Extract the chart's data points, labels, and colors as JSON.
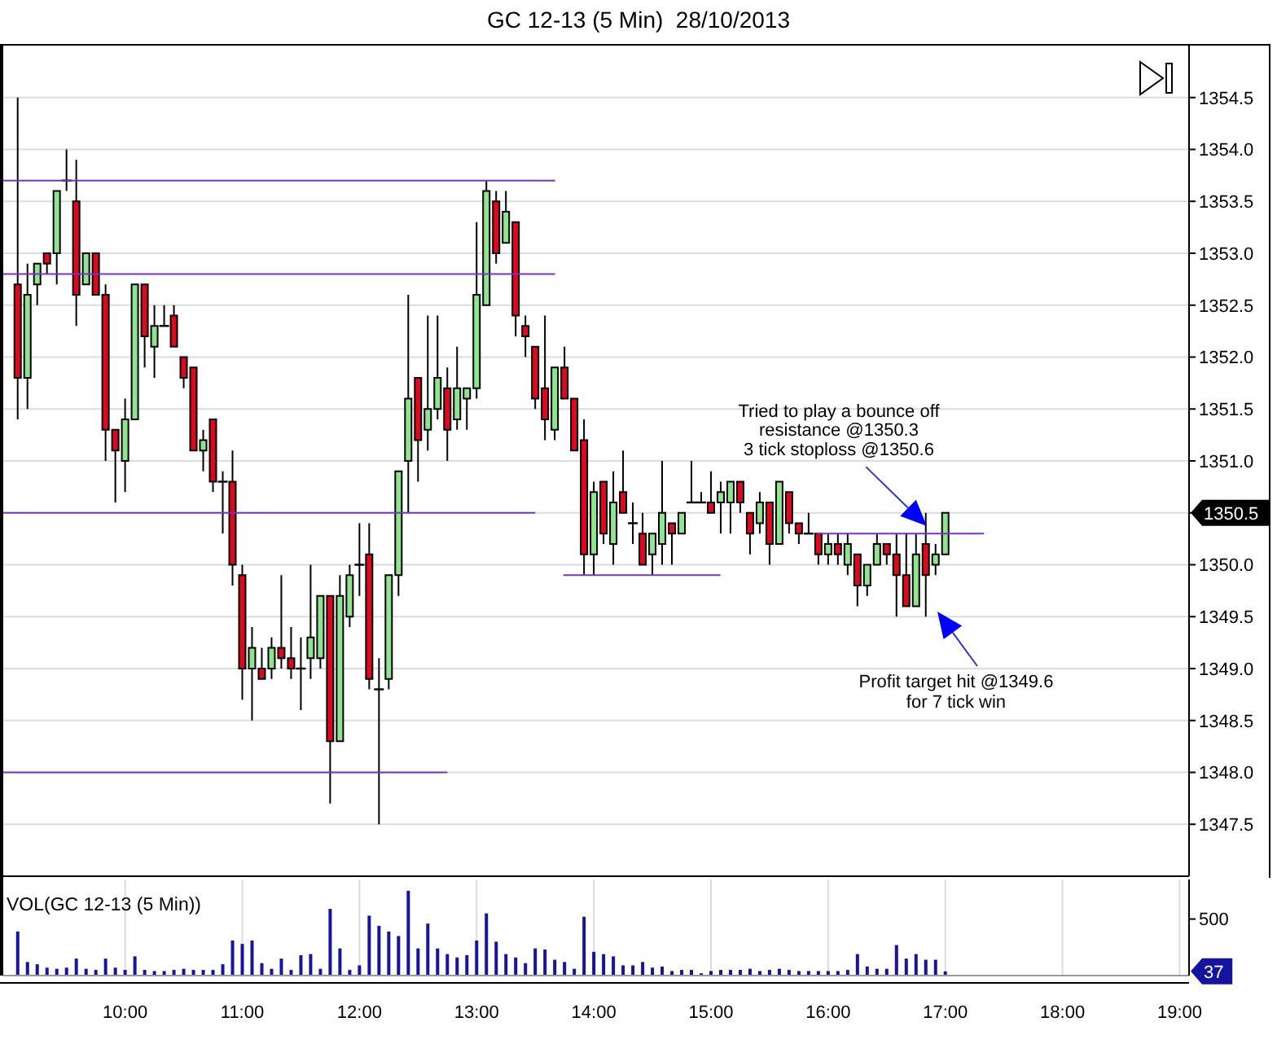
{
  "chart_data": [
    {
      "type": "candlestick",
      "title": "GC 12-13 (5 Min)  28/10/2013",
      "x": [
        9.0833,
        9.1667,
        9.25,
        9.3333,
        9.4167,
        9.5,
        9.5833,
        9.6667,
        9.75,
        9.8333,
        9.9167,
        10,
        10.0833,
        10.1667,
        10.25,
        10.3333,
        10.4167,
        10.5,
        10.5833,
        10.6667,
        10.75,
        10.8333,
        10.9167,
        11,
        11.0833,
        11.1667,
        11.25,
        11.3333,
        11.4167,
        11.5,
        11.5833,
        11.6667,
        11.75,
        11.8333,
        11.9167,
        12,
        12.0833,
        12.1667,
        12.25,
        12.3333,
        12.4167,
        12.5,
        12.5833,
        12.6667,
        12.75,
        12.8333,
        12.9167,
        13,
        13.0833,
        13.1667,
        13.25,
        13.3333,
        13.4167,
        13.5,
        13.5833,
        13.6667,
        13.75,
        13.8333,
        13.9167,
        14,
        14.0833,
        14.1667,
        14.25,
        14.3333,
        14.4167,
        14.5,
        14.5833,
        14.6667,
        14.75,
        14.8333,
        14.9167,
        15,
        15.0833,
        15.1667,
        15.25,
        15.3333,
        15.4167,
        15.5,
        15.5833,
        15.6667,
        15.75,
        15.8333,
        15.9167,
        16,
        16.0833,
        16.1667,
        16.25,
        16.3333,
        16.4167,
        16.5,
        16.5833,
        16.6667,
        16.75,
        16.8333,
        16.9167,
        17
      ],
      "ohlc": [
        [
          1352.7,
          1354.5,
          1351.4,
          1351.8
        ],
        [
          1351.8,
          1352.9,
          1351.5,
          1352.6
        ],
        [
          1352.7,
          1352.9,
          1352.5,
          1352.9
        ],
        [
          1353.0,
          1353.0,
          1352.8,
          1352.9
        ],
        [
          1353.0,
          1353.6,
          1352.7,
          1353.6
        ],
        [
          1353.7,
          1354.0,
          1353.6,
          1353.7
        ],
        [
          1353.5,
          1353.9,
          1352.3,
          1352.6
        ],
        [
          1352.7,
          1353.0,
          1352.7,
          1353.0
        ],
        [
          1353.0,
          1353.0,
          1352.6,
          1352.6
        ],
        [
          1352.6,
          1352.7,
          1351.0,
          1351.3
        ],
        [
          1351.3,
          1351.3,
          1350.6,
          1351.1
        ],
        [
          1351.0,
          1351.6,
          1350.7,
          1351.4
        ],
        [
          1351.4,
          1352.7,
          1351.4,
          1352.7
        ],
        [
          1352.7,
          1352.7,
          1351.9,
          1352.2
        ],
        [
          1352.1,
          1352.5,
          1351.8,
          1352.3
        ],
        [
          1352.3,
          1352.5,
          1352.3,
          1352.3
        ],
        [
          1352.4,
          1352.5,
          1352.1,
          1352.1
        ],
        [
          1352.0,
          1352.0,
          1351.7,
          1351.8
        ],
        [
          1351.9,
          1351.9,
          1351.1,
          1351.1
        ],
        [
          1351.1,
          1351.3,
          1350.9,
          1351.2
        ],
        [
          1351.4,
          1351.4,
          1350.7,
          1350.8
        ],
        [
          1350.8,
          1350.9,
          1350.3,
          1350.8
        ],
        [
          1350.8,
          1351.1,
          1349.8,
          1350.0
        ],
        [
          1349.9,
          1350.0,
          1348.7,
          1349.0
        ],
        [
          1349.0,
          1349.4,
          1348.5,
          1349.2
        ],
        [
          1349.0,
          1349.2,
          1348.9,
          1348.9
        ],
        [
          1349.0,
          1349.3,
          1348.9,
          1349.2
        ],
        [
          1349.2,
          1349.9,
          1349.0,
          1349.1
        ],
        [
          1349.1,
          1349.4,
          1348.9,
          1349.0
        ],
        [
          1349.0,
          1349.3,
          1348.6,
          1349.0
        ],
        [
          1349.1,
          1350.0,
          1348.9,
          1349.3
        ],
        [
          1349.1,
          1349.7,
          1349.0,
          1349.7
        ],
        [
          1349.7,
          1349.7,
          1347.7,
          1348.3
        ],
        [
          1348.3,
          1349.9,
          1348.3,
          1349.7
        ],
        [
          1349.5,
          1350.0,
          1349.4,
          1349.9
        ],
        [
          1350.0,
          1350.4,
          1349.7,
          1350.0
        ],
        [
          1350.1,
          1350.4,
          1348.8,
          1348.9
        ],
        [
          1348.8,
          1349.1,
          1347.5,
          1348.8
        ],
        [
          1348.9,
          1349.9,
          1348.8,
          1349.9
        ],
        [
          1349.9,
          1350.9,
          1349.7,
          1350.9
        ],
        [
          1351.0,
          1352.6,
          1350.5,
          1351.6
        ],
        [
          1351.8,
          1351.8,
          1350.8,
          1351.2
        ],
        [
          1351.3,
          1352.4,
          1351.1,
          1351.5
        ],
        [
          1351.5,
          1352.4,
          1351.4,
          1351.8
        ],
        [
          1351.7,
          1351.9,
          1351.0,
          1351.3
        ],
        [
          1351.4,
          1352.1,
          1351.3,
          1351.7
        ],
        [
          1351.6,
          1351.7,
          1351.3,
          1351.7
        ],
        [
          1351.7,
          1353.3,
          1351.6,
          1352.6
        ],
        [
          1352.5,
          1353.7,
          1352.5,
          1353.6
        ],
        [
          1353.5,
          1353.6,
          1352.9,
          1353.0
        ],
        [
          1353.1,
          1353.6,
          1353.1,
          1353.4
        ],
        [
          1353.3,
          1353.3,
          1352.2,
          1352.4
        ],
        [
          1352.3,
          1352.4,
          1352.0,
          1352.2
        ],
        [
          1352.1,
          1352.1,
          1351.5,
          1351.6
        ],
        [
          1351.7,
          1352.4,
          1351.2,
          1351.4
        ],
        [
          1351.3,
          1351.9,
          1351.2,
          1351.9
        ],
        [
          1351.9,
          1352.1,
          1351.6,
          1351.6
        ],
        [
          1351.6,
          1351.6,
          1351.1,
          1351.1
        ],
        [
          1351.2,
          1351.4,
          1349.9,
          1350.1
        ],
        [
          1350.1,
          1350.8,
          1349.9,
          1350.7
        ],
        [
          1350.8,
          1350.8,
          1350.2,
          1350.3
        ],
        [
          1350.2,
          1350.9,
          1350.0,
          1350.6
        ],
        [
          1350.7,
          1351.1,
          1350.5,
          1350.5
        ],
        [
          1350.4,
          1350.6,
          1350.2,
          1350.4
        ],
        [
          1350.3,
          1350.5,
          1350.0,
          1350.0
        ],
        [
          1350.1,
          1350.3,
          1349.9,
          1350.3
        ],
        [
          1350.2,
          1351.0,
          1350.0,
          1350.5
        ],
        [
          1350.4,
          1350.4,
          1350.0,
          1350.3
        ],
        [
          1350.3,
          1350.5,
          1350.3,
          1350.5
        ],
        [
          1350.6,
          1351.0,
          1350.6,
          1350.6
        ],
        [
          1350.6,
          1350.7,
          1350.6,
          1350.6
        ],
        [
          1350.6,
          1350.9,
          1350.5,
          1350.5
        ],
        [
          1350.6,
          1350.8,
          1350.3,
          1350.7
        ],
        [
          1350.6,
          1350.8,
          1350.3,
          1350.8
        ],
        [
          1350.8,
          1350.8,
          1350.5,
          1350.6
        ],
        [
          1350.5,
          1350.5,
          1350.1,
          1350.3
        ],
        [
          1350.4,
          1350.7,
          1350.3,
          1350.6
        ],
        [
          1350.6,
          1350.6,
          1350.0,
          1350.2
        ],
        [
          1350.2,
          1350.8,
          1350.2,
          1350.8
        ],
        [
          1350.7,
          1350.7,
          1350.3,
          1350.4
        ],
        [
          1350.4,
          1350.4,
          1350.2,
          1350.3
        ],
        [
          1350.3,
          1350.5,
          1350.3,
          1350.3
        ],
        [
          1350.3,
          1350.3,
          1350.0,
          1350.1
        ],
        [
          1350.1,
          1350.3,
          1350.0,
          1350.2
        ],
        [
          1350.2,
          1350.3,
          1350.0,
          1350.1
        ],
        [
          1350.0,
          1350.3,
          1349.9,
          1350.2
        ],
        [
          1350.1,
          1350.1,
          1349.6,
          1349.8
        ],
        [
          1349.8,
          1350.0,
          1349.7,
          1350.0
        ],
        [
          1350.0,
          1350.3,
          1350.0,
          1350.2
        ],
        [
          1350.2,
          1350.2,
          1350.0,
          1350.1
        ],
        [
          1350.1,
          1350.3,
          1349.5,
          1349.9
        ],
        [
          1349.9,
          1350.3,
          1349.6,
          1349.6
        ],
        [
          1349.6,
          1350.3,
          1349.6,
          1350.1
        ],
        [
          1350.2,
          1350.5,
          1349.5,
          1349.9
        ],
        [
          1350.0,
          1350.2,
          1349.9,
          1350.1
        ],
        [
          1350.1,
          1350.5,
          1350.1,
          1350.5
        ]
      ],
      "colors": [
        "#dc0a1e",
        "#90e490",
        "#90e490",
        "#dc0a1e",
        "#90e490",
        "#000000",
        "#dc0a1e",
        "#90e490",
        "#dc0a1e",
        "#dc0a1e",
        "#dc0a1e",
        "#90e490",
        "#90e490",
        "#dc0a1e",
        "#90e490",
        "#000000",
        "#dc0a1e",
        "#dc0a1e",
        "#dc0a1e",
        "#90e490",
        "#dc0a1e",
        "#000000",
        "#dc0a1e",
        "#dc0a1e",
        "#90e490",
        "#dc0a1e",
        "#90e490",
        "#dc0a1e",
        "#dc0a1e",
        "#000000",
        "#90e490",
        "#90e490",
        "#dc0a1e",
        "#90e490",
        "#90e490",
        "#000000",
        "#dc0a1e",
        "#000000",
        "#90e490",
        "#90e490",
        "#90e490",
        "#dc0a1e",
        "#90e490",
        "#90e490",
        "#dc0a1e",
        "#90e490",
        "#90e490",
        "#90e490",
        "#90e490",
        "#dc0a1e",
        "#90e490",
        "#dc0a1e",
        "#dc0a1e",
        "#dc0a1e",
        "#dc0a1e",
        "#90e490",
        "#dc0a1e",
        "#dc0a1e",
        "#dc0a1e",
        "#90e490",
        "#dc0a1e",
        "#90e490",
        "#dc0a1e",
        "#000000",
        "#dc0a1e",
        "#90e490",
        "#90e490",
        "#dc0a1e",
        "#90e490",
        "#000000",
        "#000000",
        "#dc0a1e",
        "#90e490",
        "#90e490",
        "#dc0a1e",
        "#dc0a1e",
        "#90e490",
        "#dc0a1e",
        "#90e490",
        "#dc0a1e",
        "#dc0a1e",
        "#000000",
        "#dc0a1e",
        "#90e490",
        "#dc0a1e",
        "#90e490",
        "#dc0a1e",
        "#90e490",
        "#90e490",
        "#dc0a1e",
        "#dc0a1e",
        "#dc0a1e",
        "#90e490",
        "#dc0a1e",
        "#90e490",
        "#90e490"
      ],
      "series": [
        {
          "type": "line",
          "color": "#7a35c0",
          "x": [
            8.96,
            13.67
          ],
          "values": [
            1353.7,
            1353.7
          ]
        },
        {
          "type": "line",
          "color": "#7a35c0",
          "x": [
            8.96,
            13.67
          ],
          "values": [
            1352.8,
            1352.8
          ]
        },
        {
          "type": "line",
          "color": "#7a35c0",
          "x": [
            8.96,
            13.5
          ],
          "values": [
            1350.5,
            1350.5
          ]
        },
        {
          "type": "line",
          "color": "#7a35c0",
          "x": [
            8.96,
            12.75
          ],
          "values": [
            1348.0,
            1348.0
          ]
        },
        {
          "type": "line",
          "color": "#7a35c0",
          "x": [
            13.74,
            15.08
          ],
          "values": [
            1349.9,
            1349.9
          ]
        },
        {
          "type": "line",
          "color": "#7a35c0",
          "x": [
            15.9,
            17.33
          ],
          "values": [
            1350.3,
            1350.3
          ]
        }
      ],
      "annotations": [
        "Tried to play a bounce off\nresistance @1350.3\n3 tick stoploss @1350.6",
        "Profit target hit @1349.6\nfor 7 tick win",
        "1350.5"
      ],
      "xlim": [
        8.96,
        19.08
      ],
      "xticks": [
        {
          "value": 10,
          "label": null
        },
        {
          "value": 11,
          "label": null
        },
        {
          "value": 12,
          "label": null
        },
        {
          "value": 13,
          "label": null
        },
        {
          "value": 14,
          "label": null
        },
        {
          "value": 15,
          "label": null
        },
        {
          "value": 16,
          "label": null
        },
        {
          "value": 17,
          "label": null
        },
        {
          "value": 18,
          "label": null
        },
        {
          "value": 19,
          "label": null
        }
      ],
      "ylim": [
        1347,
        1355
      ],
      "yticks": [
        1347.5,
        {
          "value": 1348,
          "label": "1348.0"
        },
        1348.5,
        {
          "value": 1349,
          "label": "1349.0"
        },
        1349.5,
        {
          "value": 1350,
          "label": "1350.0"
        },
        {
          "value": 1350.5,
          "label": null
        },
        {
          "value": 1351,
          "label": "1351.0"
        },
        1351.5,
        {
          "value": 1352,
          "label": "1352.0"
        },
        1352.5,
        {
          "value": 1353,
          "label": "1353.0"
        },
        1353.5,
        {
          "value": 1354,
          "label": "1354.0"
        },
        1354.5
      ],
      "grid": true,
      "tick_labels": "y"
    },
    {
      "type": "bar",
      "title": "VOL(GC 12-13 (5 Min))",
      "x": [
        9.0833,
        9.1667,
        9.25,
        9.3333,
        9.4167,
        9.5,
        9.5833,
        9.6667,
        9.75,
        9.8333,
        9.9167,
        10,
        10.0833,
        10.1667,
        10.25,
        10.3333,
        10.4167,
        10.5,
        10.5833,
        10.6667,
        10.75,
        10.8333,
        10.9167,
        11,
        11.0833,
        11.1667,
        11.25,
        11.3333,
        11.4167,
        11.5,
        11.5833,
        11.6667,
        11.75,
        11.8333,
        11.9167,
        12,
        12.0833,
        12.1667,
        12.25,
        12.3333,
        12.4167,
        12.5,
        12.5833,
        12.6667,
        12.75,
        12.8333,
        12.9167,
        13,
        13.0833,
        13.1667,
        13.25,
        13.3333,
        13.4167,
        13.5,
        13.5833,
        13.6667,
        13.75,
        13.8333,
        13.9167,
        14,
        14.0833,
        14.1667,
        14.25,
        14.3333,
        14.4167,
        14.5,
        14.5833,
        14.6667,
        14.75,
        14.8333,
        14.9167,
        15,
        15.0833,
        15.1667,
        15.25,
        15.3333,
        15.4167,
        15.5,
        15.5833,
        15.6667,
        15.75,
        15.8333,
        15.9167,
        16,
        16.0833,
        16.1667,
        16.25,
        16.3333,
        16.4167,
        16.5,
        16.5833,
        16.6667,
        16.75,
        16.8333,
        16.9167,
        17
      ],
      "values": [
        390,
        120,
        100,
        70,
        60,
        70,
        150,
        60,
        50,
        150,
        70,
        50,
        170,
        50,
        40,
        40,
        50,
        60,
        50,
        50,
        50,
        100,
        310,
        280,
        310,
        110,
        60,
        150,
        50,
        180,
        190,
        60,
        590,
        240,
        50,
        90,
        530,
        440,
        390,
        350,
        750,
        240,
        460,
        240,
        190,
        160,
        180,
        310,
        550,
        300,
        190,
        160,
        110,
        240,
        230,
        140,
        120,
        60,
        520,
        210,
        190,
        170,
        90,
        90,
        120,
        70,
        80,
        40,
        50,
        50,
        20,
        40,
        50,
        50,
        50,
        60,
        40,
        50,
        60,
        50,
        40,
        40,
        40,
        40,
        40,
        50,
        190,
        80,
        60,
        60,
        270,
        150,
        190,
        140,
        140,
        37
      ],
      "color": "#1414a0",
      "annotations": [
        "37"
      ],
      "xlim": [
        8.96,
        19.08
      ],
      "xticks": [
        {
          "value": 10,
          "label": "10:00"
        },
        {
          "value": 11,
          "label": "11:00"
        },
        {
          "value": 12,
          "label": "12:00"
        },
        {
          "value": 13,
          "label": "13:00"
        },
        {
          "value": 14,
          "label": "14:00"
        },
        {
          "value": 15,
          "label": "15:00"
        },
        {
          "value": 16,
          "label": "16:00"
        },
        {
          "value": 17,
          "label": "17:00"
        },
        {
          "value": 18,
          "label": "18:00"
        },
        {
          "value": 19,
          "label": "19:00"
        }
      ],
      "ylim": [
        0,
        850
      ],
      "yticks": [
        500
      ],
      "grid": "x"
    }
  ]
}
